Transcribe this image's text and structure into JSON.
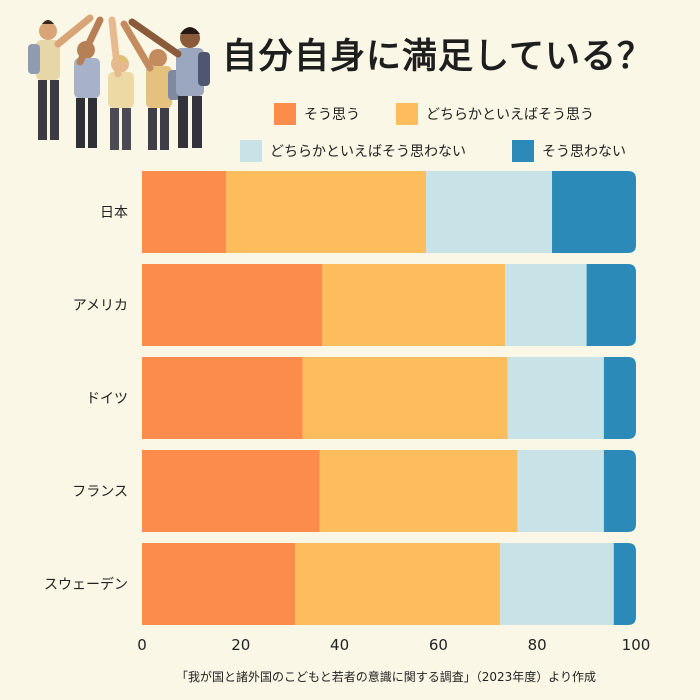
{
  "title": "自分自身に満足している？",
  "source": "「我が国と諸外国のこどもと若者の意識に関する調査」（2023年度）より作成",
  "colors": {
    "そう思う": "#fb8c4b",
    "どちらかといえばそう思う": "#fdbd5c",
    "どちらかといえばそう思わない": "#c7e3e8",
    "そう思わない": "#2b8ab8"
  },
  "chart_data": {
    "type": "bar",
    "orientation": "horizontal",
    "stacked": true,
    "categories": [
      "日本",
      "アメリカ",
      "ドイツ",
      "フランス",
      "スウェーデン"
    ],
    "series": [
      {
        "name": "そう思う",
        "values": [
          17.0,
          36.5,
          32.5,
          36.0,
          31.0
        ]
      },
      {
        "name": "どちらかといえばそう思う",
        "values": [
          40.5,
          37.0,
          41.5,
          40.0,
          41.5
        ]
      },
      {
        "name": "どちらかといえばそう思わない",
        "values": [
          25.5,
          16.5,
          19.5,
          17.5,
          23.0
        ]
      },
      {
        "name": "そう思わない",
        "values": [
          17.0,
          10.0,
          6.5,
          6.5,
          4.5
        ]
      }
    ],
    "xlim": [
      0,
      100
    ],
    "xticks": [
      0,
      20,
      40,
      60,
      80,
      100
    ],
    "legend": "top",
    "grid": false
  }
}
